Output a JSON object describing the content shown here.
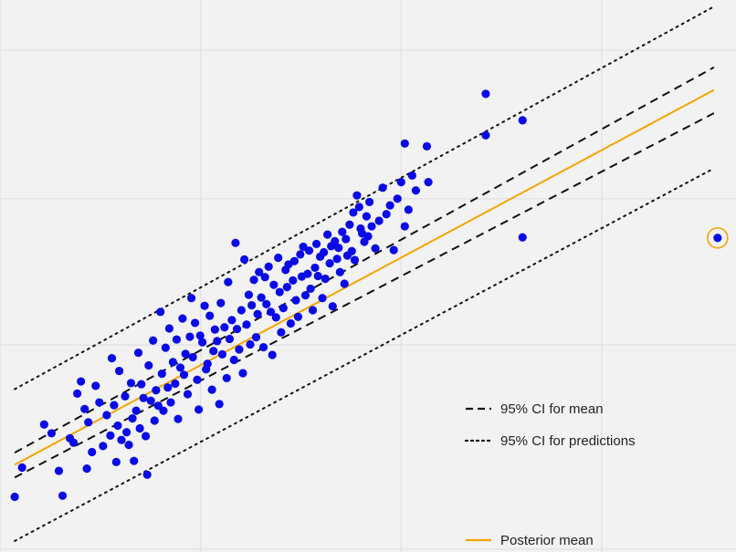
{
  "chart_data": {
    "type": "scatter",
    "title": "",
    "xlabel": "",
    "ylabel": "",
    "grid": true,
    "xlim": [
      0,
      10
    ],
    "ylim": [
      0,
      10
    ],
    "grid_x": [
      0,
      2.725,
      5.45,
      8.175
    ],
    "grid_y": [
      0.05,
      3.75,
      6.4,
      9.09
    ],
    "colors": {
      "points": "#0a0ae6",
      "mean_line": "#f5a300",
      "ci_lines": "#111111",
      "background": "#f2f2f2",
      "grid": "#e2e2e8",
      "highlight": "#f5a300"
    },
    "series": [
      {
        "kind": "ci_mean",
        "style": "dashed",
        "points": [
          [
            0.2,
            1.8
          ],
          [
            9.7,
            8.78
          ]
        ]
      },
      {
        "kind": "ci_mean",
        "style": "dashed",
        "points": [
          [
            0.2,
            1.35
          ],
          [
            9.7,
            7.95
          ]
        ]
      },
      {
        "kind": "posterior_mean",
        "style": "solid",
        "points": [
          [
            0.2,
            1.58
          ],
          [
            9.7,
            8.37
          ]
        ]
      },
      {
        "kind": "ci_prediction",
        "style": "dotted",
        "points": [
          [
            0.2,
            2.95
          ],
          [
            9.7,
            9.88
          ]
        ]
      },
      {
        "kind": "ci_prediction",
        "style": "dotted",
        "points": [
          [
            0.2,
            0.2
          ],
          [
            9.7,
            6.95
          ]
        ]
      }
    ],
    "legend": {
      "position": "right",
      "entries": [
        {
          "label": "95% CI for mean",
          "style": "dashed"
        },
        {
          "label": "95% CI for predictions",
          "style": "dotted"
        },
        {
          "label": "Posterior mean",
          "style": "solid"
        }
      ]
    },
    "highlighted_point": [
      9.75,
      5.69
    ],
    "points": [
      [
        0.2,
        1.0
      ],
      [
        0.3,
        1.53
      ],
      [
        0.6,
        2.31
      ],
      [
        0.7,
        2.15
      ],
      [
        0.8,
        1.47
      ],
      [
        0.85,
        1.02
      ],
      [
        0.95,
        2.06
      ],
      [
        1.0,
        1.98
      ],
      [
        1.05,
        2.87
      ],
      [
        1.1,
        3.09
      ],
      [
        1.15,
        2.59
      ],
      [
        1.18,
        1.51
      ],
      [
        1.2,
        2.35
      ],
      [
        1.25,
        1.81
      ],
      [
        1.3,
        3.01
      ],
      [
        1.35,
        2.71
      ],
      [
        1.4,
        1.92
      ],
      [
        1.45,
        2.48
      ],
      [
        1.5,
        2.11
      ],
      [
        1.52,
        3.51
      ],
      [
        1.55,
        2.66
      ],
      [
        1.58,
        1.63
      ],
      [
        1.6,
        2.29
      ],
      [
        1.62,
        3.28
      ],
      [
        1.65,
        2.03
      ],
      [
        1.7,
        2.82
      ],
      [
        1.72,
        2.17
      ],
      [
        1.75,
        1.94
      ],
      [
        1.78,
        3.06
      ],
      [
        1.8,
        2.42
      ],
      [
        1.82,
        1.65
      ],
      [
        1.85,
        2.56
      ],
      [
        1.88,
        3.61
      ],
      [
        1.9,
        2.24
      ],
      [
        1.92,
        3.04
      ],
      [
        1.95,
        2.79
      ],
      [
        1.98,
        2.1
      ],
      [
        2.0,
        1.4
      ],
      [
        2.02,
        3.38
      ],
      [
        2.05,
        2.74
      ],
      [
        2.08,
        3.83
      ],
      [
        2.1,
        2.38
      ],
      [
        2.12,
        2.93
      ],
      [
        2.15,
        2.65
      ],
      [
        2.18,
        4.35
      ],
      [
        2.2,
        3.23
      ],
      [
        2.22,
        2.56
      ],
      [
        2.25,
        3.7
      ],
      [
        2.28,
        2.98
      ],
      [
        2.3,
        4.05
      ],
      [
        2.32,
        2.71
      ],
      [
        2.35,
        3.44
      ],
      [
        2.38,
        3.05
      ],
      [
        2.4,
        3.85
      ],
      [
        2.42,
        2.41
      ],
      [
        2.45,
        3.34
      ],
      [
        2.48,
        4.23
      ],
      [
        2.5,
        3.21
      ],
      [
        2.52,
        3.59
      ],
      [
        2.55,
        2.86
      ],
      [
        2.58,
        3.9
      ],
      [
        2.6,
        4.6
      ],
      [
        2.62,
        3.53
      ],
      [
        2.65,
        4.15
      ],
      [
        2.68,
        3.12
      ],
      [
        2.7,
        2.58
      ],
      [
        2.72,
        3.92
      ],
      [
        2.75,
        3.8
      ],
      [
        2.78,
        4.46
      ],
      [
        2.8,
        3.31
      ],
      [
        2.82,
        3.41
      ],
      [
        2.85,
        4.28
      ],
      [
        2.88,
        2.94
      ],
      [
        2.9,
        3.64
      ],
      [
        2.92,
        4.03
      ],
      [
        2.95,
        3.82
      ],
      [
        2.98,
        2.68
      ],
      [
        3.0,
        4.51
      ],
      [
        3.02,
        3.58
      ],
      [
        3.05,
        4.07
      ],
      [
        3.08,
        3.15
      ],
      [
        3.1,
        4.89
      ],
      [
        3.12,
        3.86
      ],
      [
        3.15,
        4.2
      ],
      [
        3.18,
        3.48
      ],
      [
        3.2,
        5.6
      ],
      [
        3.22,
        4.04
      ],
      [
        3.25,
        3.67
      ],
      [
        3.28,
        4.38
      ],
      [
        3.3,
        3.24
      ],
      [
        3.32,
        5.3
      ],
      [
        3.35,
        4.12
      ],
      [
        3.38,
        4.66
      ],
      [
        3.4,
        3.76
      ],
      [
        3.42,
        4.47
      ],
      [
        3.45,
        4.93
      ],
      [
        3.48,
        3.89
      ],
      [
        3.5,
        4.31
      ],
      [
        3.52,
        5.07
      ],
      [
        3.55,
        4.61
      ],
      [
        3.58,
        3.71
      ],
      [
        3.6,
        4.98
      ],
      [
        3.62,
        4.49
      ],
      [
        3.65,
        5.17
      ],
      [
        3.68,
        4.35
      ],
      [
        3.7,
        3.57
      ],
      [
        3.72,
        4.84
      ],
      [
        3.75,
        4.25
      ],
      [
        3.78,
        5.33
      ],
      [
        3.8,
        4.71
      ],
      [
        3.82,
        3.98
      ],
      [
        3.85,
        4.42
      ],
      [
        3.88,
        5.11
      ],
      [
        3.9,
        4.8
      ],
      [
        3.92,
        5.21
      ],
      [
        3.95,
        4.14
      ],
      [
        3.98,
        4.92
      ],
      [
        4.0,
        5.27
      ],
      [
        4.02,
        4.56
      ],
      [
        4.05,
        4.26
      ],
      [
        4.08,
        5.39
      ],
      [
        4.1,
        4.99
      ],
      [
        4.12,
        5.53
      ],
      [
        4.15,
        4.65
      ],
      [
        4.18,
        5.04
      ],
      [
        4.2,
        5.46
      ],
      [
        4.22,
        4.77
      ],
      [
        4.25,
        4.38
      ],
      [
        4.28,
        5.15
      ],
      [
        4.3,
        5.58
      ],
      [
        4.32,
        5.0
      ],
      [
        4.35,
        5.35
      ],
      [
        4.38,
        4.6
      ],
      [
        4.4,
        5.43
      ],
      [
        4.42,
        4.95
      ],
      [
        4.45,
        5.75
      ],
      [
        4.48,
        5.23
      ],
      [
        4.5,
        5.54
      ],
      [
        4.52,
        4.45
      ],
      [
        4.55,
        5.63
      ],
      [
        4.58,
        5.31
      ],
      [
        4.6,
        5.51
      ],
      [
        4.62,
        5.07
      ],
      [
        4.65,
        5.8
      ],
      [
        4.68,
        4.86
      ],
      [
        4.7,
        5.67
      ],
      [
        4.72,
        5.37
      ],
      [
        4.75,
        5.93
      ],
      [
        4.78,
        5.45
      ],
      [
        4.8,
        6.15
      ],
      [
        4.82,
        5.29
      ],
      [
        4.85,
        6.46
      ],
      [
        4.88,
        6.25
      ],
      [
        4.9,
        5.86
      ],
      [
        4.92,
        5.77
      ],
      [
        4.95,
        5.62
      ],
      [
        4.98,
        6.08
      ],
      [
        5.0,
        5.72
      ],
      [
        5.02,
        6.34
      ],
      [
        5.05,
        5.9
      ],
      [
        5.1,
        5.5
      ],
      [
        5.15,
        6.0
      ],
      [
        5.2,
        6.6
      ],
      [
        5.25,
        6.12
      ],
      [
        5.3,
        6.28
      ],
      [
        5.35,
        5.47
      ],
      [
        5.4,
        6.4
      ],
      [
        5.45,
        6.7
      ],
      [
        5.5,
        5.9
      ],
      [
        5.55,
        6.2
      ],
      [
        5.6,
        6.82
      ],
      [
        5.65,
        6.55
      ],
      [
        5.8,
        7.35
      ],
      [
        5.82,
        6.7
      ],
      [
        6.6,
        7.55
      ],
      [
        7.1,
        7.82
      ]
    ],
    "point_jitter": [
      [
        0,
        0
      ],
      [
        0,
        0
      ],
      [
        0,
        0
      ],
      [
        0,
        0
      ],
      [
        0,
        0
      ],
      [
        0,
        0
      ],
      [
        0,
        0
      ],
      [
        0,
        0
      ],
      [
        0,
        0
      ],
      [
        0,
        0
      ],
      [
        0,
        0
      ],
      [
        0,
        0
      ],
      [
        0,
        0
      ],
      [
        0,
        0
      ],
      [
        0,
        0
      ],
      [
        0,
        0
      ],
      [
        0,
        0
      ],
      [
        0,
        0
      ],
      [
        0,
        0
      ],
      [
        0,
        0
      ],
      [
        0,
        0
      ],
      [
        0,
        0
      ],
      [
        0,
        0
      ],
      [
        0,
        0
      ],
      [
        0,
        0
      ],
      [
        0,
        0
      ],
      [
        0,
        0
      ],
      [
        0,
        0
      ],
      [
        0,
        0
      ],
      [
        0,
        0
      ],
      [
        0,
        0
      ],
      [
        0,
        0
      ],
      [
        0,
        0
      ],
      [
        0,
        0
      ],
      [
        0,
        0
      ],
      [
        0,
        0
      ],
      [
        0,
        0
      ],
      [
        0,
        0
      ],
      [
        0,
        0
      ],
      [
        0,
        0
      ],
      [
        0,
        0
      ],
      [
        0,
        0
      ],
      [
        0,
        0
      ],
      [
        0,
        0
      ],
      [
        0,
        0
      ],
      [
        0,
        0
      ],
      [
        0,
        0
      ],
      [
        0,
        0
      ],
      [
        0,
        0
      ],
      [
        0,
        0
      ],
      [
        0,
        0
      ],
      [
        0,
        0
      ],
      [
        0,
        0
      ],
      [
        0,
        0
      ],
      [
        0,
        0
      ],
      [
        0,
        0
      ],
      [
        0,
        0
      ],
      [
        0,
        0
      ],
      [
        0,
        0
      ],
      [
        0,
        0
      ],
      [
        0,
        0
      ],
      [
        0,
        0
      ],
      [
        0,
        0
      ],
      [
        0,
        0
      ],
      [
        0,
        0
      ],
      [
        0,
        0
      ],
      [
        0,
        0
      ],
      [
        0,
        0
      ],
      [
        0,
        0
      ],
      [
        0,
        0
      ],
      [
        0,
        0
      ],
      [
        0,
        0
      ],
      [
        0,
        0
      ],
      [
        0,
        0
      ],
      [
        0,
        0
      ],
      [
        0,
        0
      ],
      [
        0,
        0
      ],
      [
        0,
        0
      ],
      [
        0,
        0
      ],
      [
        0,
        0
      ],
      [
        0,
        0
      ],
      [
        0,
        0
      ],
      [
        0,
        0
      ],
      [
        0,
        0
      ],
      [
        0,
        0
      ],
      [
        0,
        0
      ],
      [
        0,
        0
      ],
      [
        0,
        0
      ],
      [
        0,
        0
      ],
      [
        0,
        0
      ],
      [
        0,
        0
      ],
      [
        0,
        0
      ],
      [
        0,
        0
      ],
      [
        0,
        0
      ],
      [
        0,
        0
      ],
      [
        0,
        0
      ],
      [
        0,
        0
      ],
      [
        0,
        0
      ],
      [
        0,
        0
      ],
      [
        0,
        0
      ],
      [
        0,
        0
      ],
      [
        0,
        0
      ],
      [
        0,
        0
      ],
      [
        0,
        0
      ],
      [
        0,
        0
      ],
      [
        0,
        0
      ],
      [
        0,
        0
      ],
      [
        0,
        0
      ],
      [
        0,
        0
      ],
      [
        0,
        0
      ],
      [
        0,
        0
      ],
      [
        0,
        0
      ],
      [
        0,
        0
      ],
      [
        0,
        0
      ],
      [
        0,
        0
      ],
      [
        0,
        0
      ],
      [
        0,
        0
      ],
      [
        0,
        0
      ],
      [
        0,
        0
      ],
      [
        0,
        0
      ],
      [
        0,
        0
      ],
      [
        0,
        0
      ],
      [
        0,
        0
      ],
      [
        0,
        0
      ],
      [
        0,
        0
      ],
      [
        0,
        0
      ],
      [
        0,
        0
      ],
      [
        0,
        0
      ],
      [
        0,
        0
      ],
      [
        0,
        0
      ],
      [
        0,
        0
      ],
      [
        0,
        0
      ],
      [
        0,
        0
      ],
      [
        0,
        0
      ],
      [
        0,
        0
      ],
      [
        0,
        0
      ],
      [
        0,
        0
      ],
      [
        0,
        0
      ],
      [
        0,
        0
      ],
      [
        0,
        0
      ],
      [
        0,
        0
      ],
      [
        0,
        0
      ],
      [
        0,
        0
      ],
      [
        0,
        0
      ],
      [
        0,
        0
      ],
      [
        0,
        0
      ],
      [
        0,
        0
      ],
      [
        0,
        0
      ],
      [
        0,
        0
      ],
      [
        0,
        0
      ],
      [
        0,
        0
      ],
      [
        0,
        0
      ],
      [
        0,
        0
      ],
      [
        0,
        0
      ],
      [
        0,
        0
      ],
      [
        0,
        0
      ],
      [
        0,
        0
      ],
      [
        0,
        0
      ],
      [
        0,
        0
      ],
      [
        0,
        0
      ],
      [
        0,
        0
      ],
      [
        0,
        0
      ],
      [
        0,
        0
      ],
      [
        0,
        0
      ],
      [
        0,
        0
      ],
      [
        0,
        0
      ],
      [
        0,
        0
      ],
      [
        0,
        0
      ]
    ],
    "outliers": [
      [
        5.5,
        7.4
      ],
      [
        6.6,
        8.3
      ],
      [
        7.1,
        5.7
      ]
    ]
  }
}
